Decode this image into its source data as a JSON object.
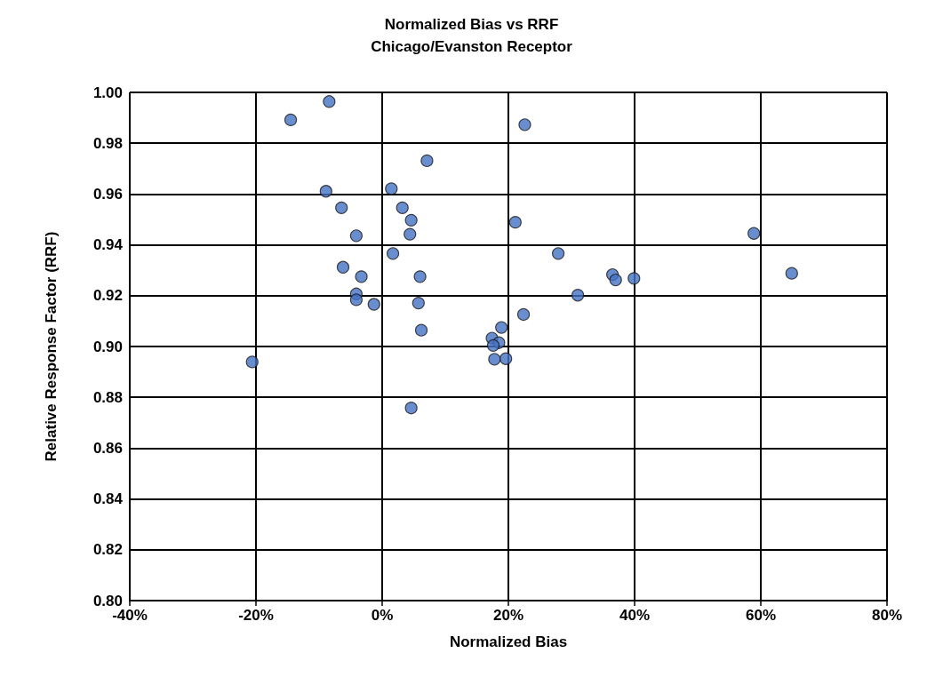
{
  "chart_data": {
    "type": "scatter",
    "title": "Normalized Bias vs RRF",
    "subtitle": "Chicago/Evanston Receptor",
    "xlabel": "Normalized Bias",
    "ylabel": "Relative Response Factor (RRF)",
    "x": [
      -14.5,
      -8.4,
      7.1,
      -8.9,
      1.45,
      -6.45,
      3.2,
      4.6,
      4.4,
      -4.1,
      1.7,
      -6.2,
      -3.3,
      6.0,
      -4.1,
      -4.1,
      -1.3,
      5.75,
      6.2,
      -20.6,
      4.6,
      22.6,
      21.1,
      27.9,
      36.5,
      37.0,
      39.9,
      31.0,
      22.4,
      18.9,
      17.4,
      18.5,
      17.6,
      17.8,
      19.6,
      58.9,
      64.9
    ],
    "values": [
      0.9892,
      0.9964,
      0.9731,
      0.9611,
      0.9621,
      0.9546,
      0.9546,
      0.9497,
      0.9442,
      0.9436,
      0.9366,
      0.9312,
      0.9275,
      0.9275,
      0.9207,
      0.9184,
      0.9166,
      0.9171,
      0.9064,
      0.8939,
      0.8758,
      0.9873,
      0.9489,
      0.9366,
      0.9283,
      0.9262,
      0.9268,
      0.9202,
      0.9126,
      0.9075,
      0.9033,
      0.9015,
      0.9004,
      0.895,
      0.8952,
      0.9445,
      0.9288
    ],
    "color": "#4472c4",
    "marker": "circle",
    "grid": true,
    "xlim": [
      -40,
      80
    ],
    "xticks": [
      {
        "value": -40,
        "label": "-40%"
      },
      {
        "value": -20,
        "label": "-20%"
      },
      {
        "value": 0,
        "label": "0%"
      },
      {
        "value": 20,
        "label": "20%"
      },
      {
        "value": 40,
        "label": "40%"
      },
      {
        "value": 60,
        "label": "60%"
      },
      {
        "value": 80,
        "label": "80%"
      }
    ],
    "ylim": [
      0.8,
      1.0
    ],
    "yticks": [
      {
        "value": 0.8,
        "label": "0.80"
      },
      {
        "value": 0.82,
        "label": "0.82"
      },
      {
        "value": 0.84,
        "label": "0.84"
      },
      {
        "value": 0.86,
        "label": "0.86"
      },
      {
        "value": 0.88,
        "label": "0.88"
      },
      {
        "value": 0.9,
        "label": "0.90"
      },
      {
        "value": 0.92,
        "label": "0.92"
      },
      {
        "value": 0.94,
        "label": "0.94"
      },
      {
        "value": 0.96,
        "label": "0.96"
      },
      {
        "value": 0.98,
        "label": "0.98"
      },
      {
        "value": 1.0,
        "label": "1.00"
      }
    ]
  }
}
